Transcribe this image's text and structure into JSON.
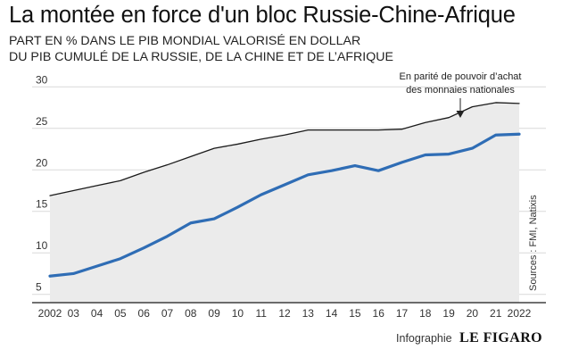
{
  "title": "La montée en force d'un bloc Russie-Chine-Afrique",
  "subtitle_lines": [
    "PART EN % DANS LE PIB MONDIAL VALORISÉ EN DOLLAR",
    "DU PIB CUMULÉ DE LA RUSSIE, DE LA CHINE ET DE L’AFRIQUE"
  ],
  "annotation_lines": [
    "En parité de pouvoir d’achat",
    "des monnaies nationales"
  ],
  "source": "Sources : FMI, Natixis",
  "credit": {
    "label": "Infographie",
    "brand": "LE FIGARO"
  },
  "colors": {
    "ppp_line": "#1a1a1a",
    "usd_line": "#2f6db5",
    "area_fill": "#ebebeb",
    "grid": "#d9d9d9"
  },
  "chart_data": {
    "type": "line",
    "x": [
      2002,
      2003,
      2004,
      2005,
      2006,
      2007,
      2008,
      2009,
      2010,
      2011,
      2012,
      2013,
      2014,
      2015,
      2016,
      2017,
      2018,
      2019,
      2020,
      2021,
      2022
    ],
    "x_tick_labels": [
      "2002",
      "03",
      "04",
      "05",
      "06",
      "07",
      "08",
      "09",
      "10",
      "11",
      "12",
      "13",
      "14",
      "15",
      "16",
      "17",
      "18",
      "19",
      "20",
      "21",
      "2022"
    ],
    "y_ticks": [
      5,
      10,
      15,
      20,
      25,
      30
    ],
    "ylim": [
      4,
      31
    ],
    "grid": true,
    "series": [
      {
        "key": "ppp",
        "values": [
          16.9,
          17.5,
          18.1,
          18.7,
          19.7,
          20.6,
          21.6,
          22.6,
          23.1,
          23.7,
          24.2,
          24.8,
          24.8,
          24.8,
          24.8,
          24.9,
          25.7,
          26.3,
          27.6,
          28.1,
          28.0
        ]
      },
      {
        "key": "usd",
        "values": [
          7.2,
          7.5,
          8.4,
          9.3,
          10.6,
          12.0,
          13.6,
          14.1,
          15.5,
          17.0,
          18.2,
          19.4,
          19.9,
          20.5,
          19.9,
          20.9,
          21.8,
          21.9,
          22.6,
          24.2,
          24.3
        ]
      }
    ]
  }
}
